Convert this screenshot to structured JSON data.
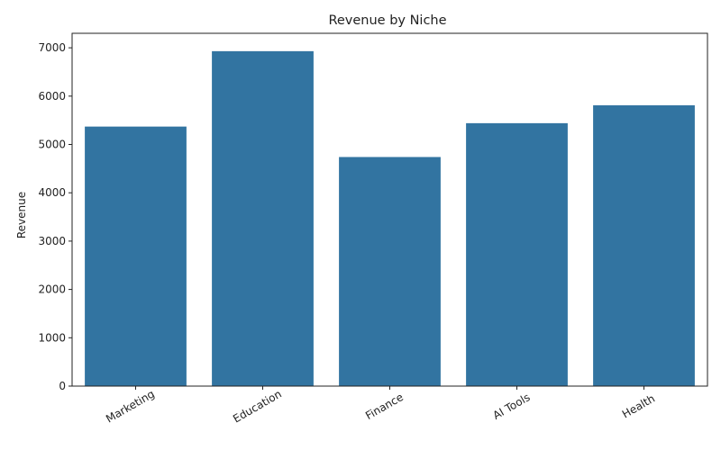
{
  "chart_data": {
    "type": "bar",
    "title": "Revenue by Niche",
    "xlabel": "",
    "ylabel": "Revenue",
    "categories": [
      "Marketing",
      "Education",
      "Finance",
      "AI Tools",
      "Health"
    ],
    "values": [
      5370,
      6930,
      4740,
      5440,
      5810
    ],
    "ylim": [
      0,
      7300
    ],
    "yticks": [
      0,
      1000,
      2000,
      3000,
      4000,
      5000,
      6000,
      7000
    ],
    "bar_color": "#3274a1",
    "grid": false,
    "legend": "none"
  }
}
